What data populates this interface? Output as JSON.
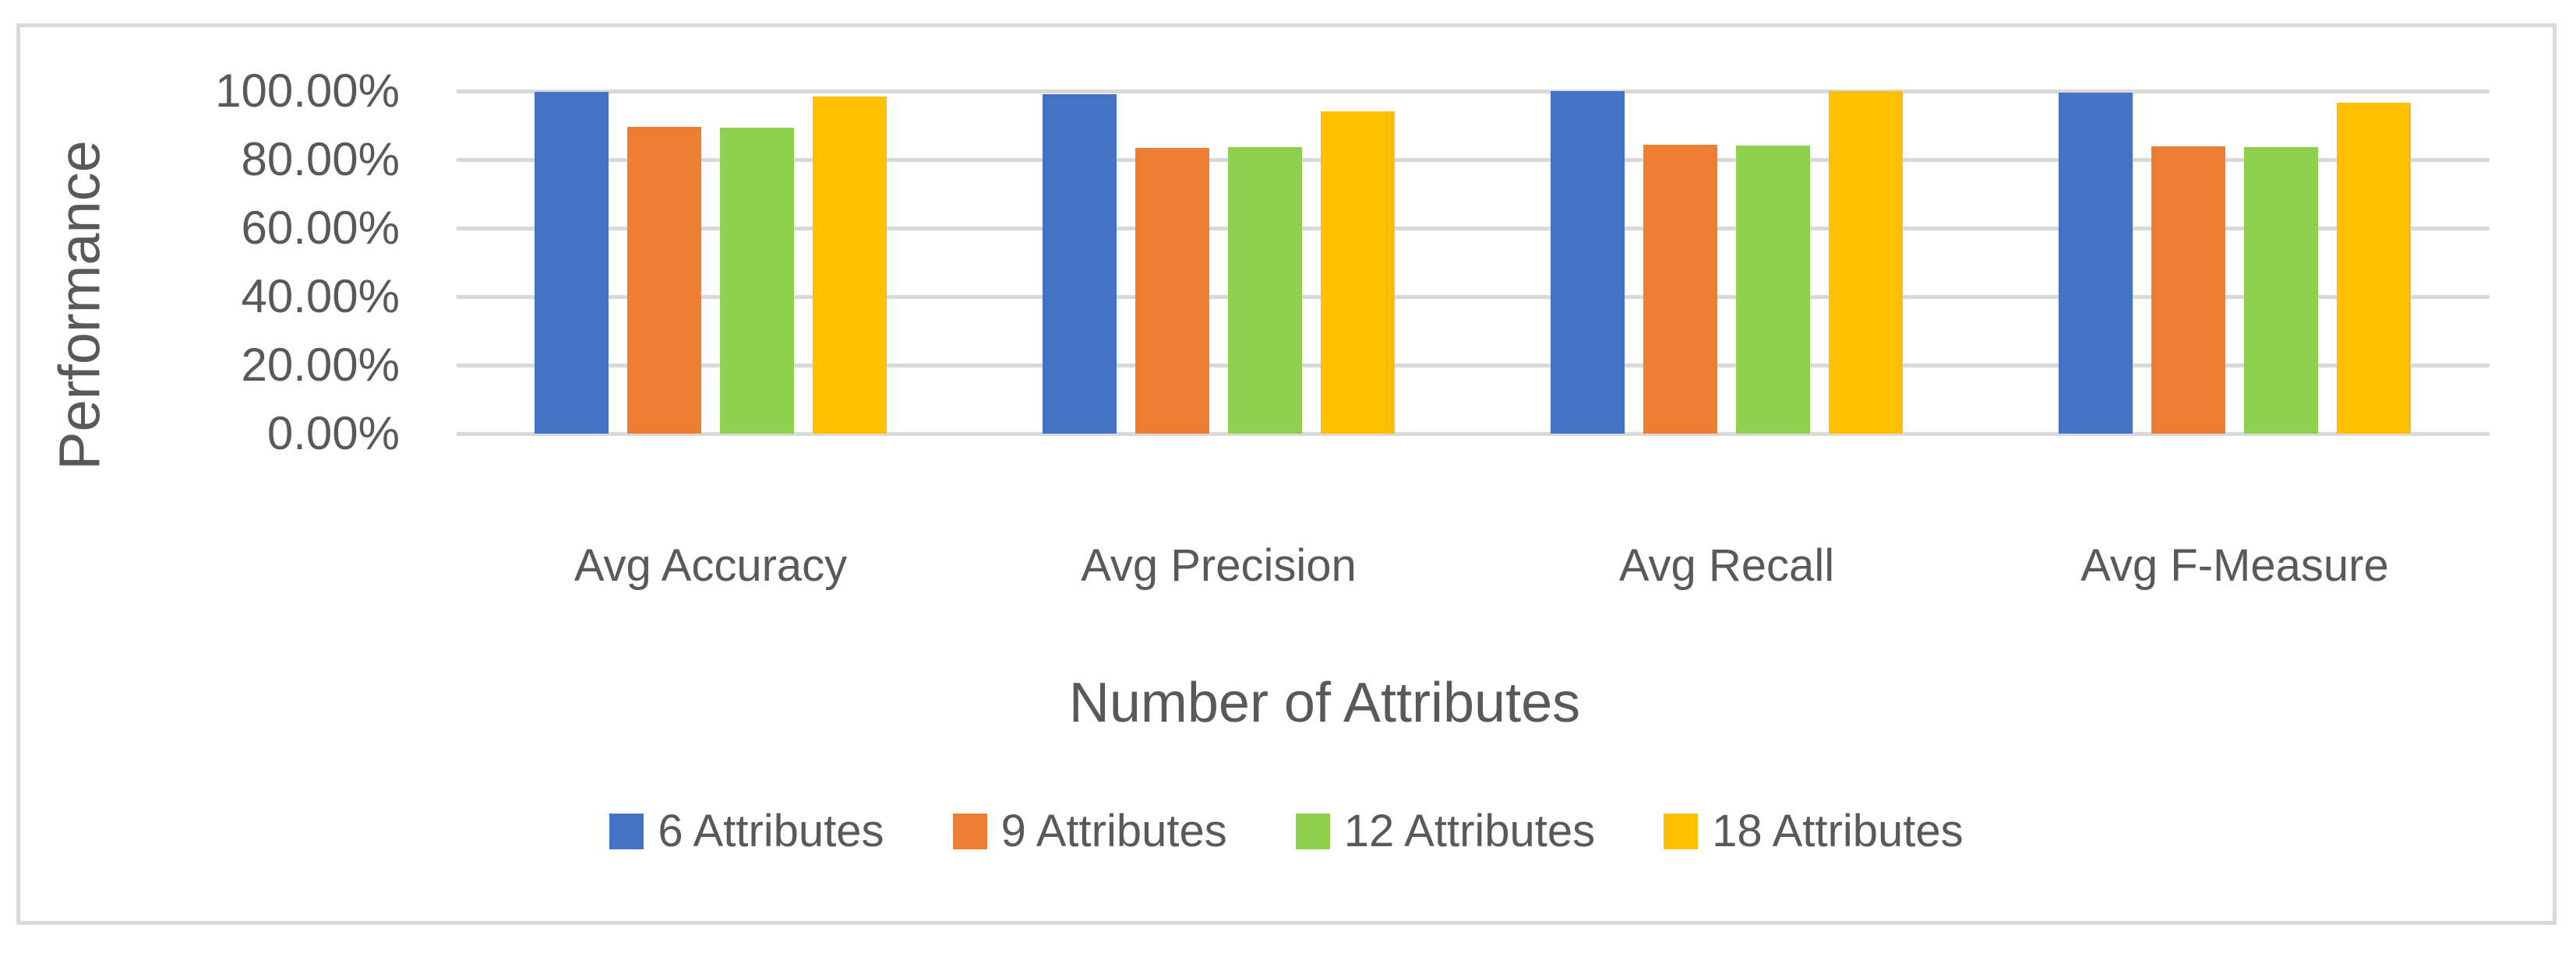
{
  "chart_data": {
    "type": "bar",
    "title": "",
    "categories": [
      "Avg Accuracy",
      "Avg Precision",
      "Avg Recall",
      "Avg F-Measure"
    ],
    "series": [
      {
        "name": "6 Attributes",
        "color": "#4472C4",
        "values": [
          99.8,
          99.2,
          100.0,
          99.5
        ]
      },
      {
        "name": "9 Attributes",
        "color": "#ED7D31",
        "values": [
          89.5,
          83.3,
          84.4,
          83.9
        ]
      },
      {
        "name": "12 Attributes",
        "color": "#8ED14F",
        "values": [
          89.4,
          83.6,
          84.0,
          83.7
        ]
      },
      {
        "name": "18 Attributes",
        "color": "#FFC000",
        "values": [
          98.3,
          94.0,
          100.0,
          96.6
        ]
      }
    ],
    "xlabel": "Number of Attributes",
    "ylabel": "Performance",
    "ylim": [
      0,
      100
    ],
    "y_tick_step": 20,
    "y_ticks": [
      "0.00%",
      "20.00%",
      "40.00%",
      "60.00%",
      "80.00%",
      "100.00%"
    ],
    "grid": true,
    "legend_position": "bottom"
  },
  "colors": {
    "text": "#595959",
    "gridline": "#D9D9D9",
    "frame_border": "#D9D9D9",
    "background": "#FFFFFF"
  }
}
